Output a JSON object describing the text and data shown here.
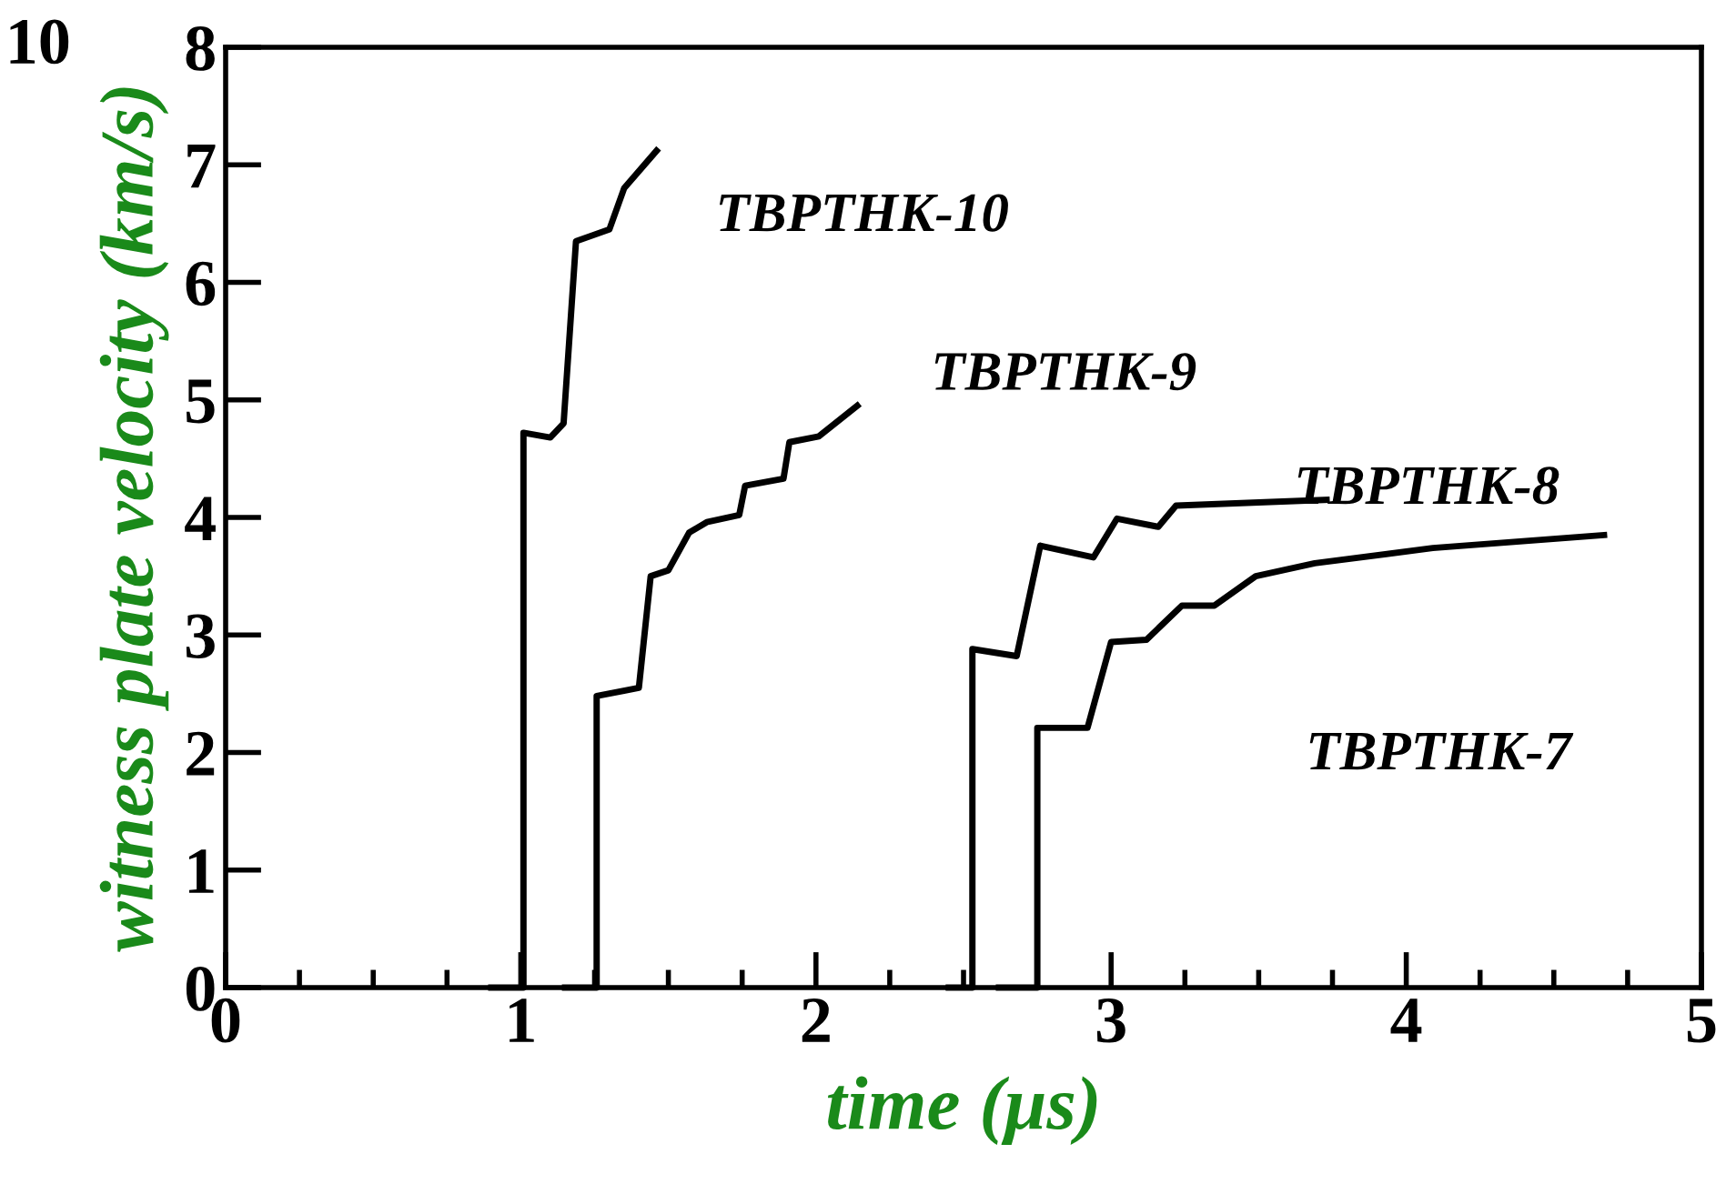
{
  "chart_data": {
    "type": "line",
    "xlabel": "time (μs)",
    "ylabel": "witness plate velocity (km/s)",
    "xlim": [
      0,
      5
    ],
    "ylim": [
      0,
      8
    ],
    "xticks": [
      0,
      1,
      2,
      3,
      4,
      5
    ],
    "yticks": [
      0,
      1,
      2,
      3,
      4,
      5,
      6,
      7,
      8
    ],
    "grid": false,
    "legend": false,
    "marker": "none",
    "line_style": "solid",
    "annotations": [
      "10"
    ],
    "series": [
      {
        "name": "TBPTHK-10",
        "color": "#000000",
        "x": [
          0.9,
          1.009,
          1.009,
          1.1,
          1.145,
          1.187,
          1.3,
          1.35,
          1.46
        ],
        "values": [
          0,
          0,
          4.72,
          4.68,
          4.8,
          6.35,
          6.45,
          6.8,
          7.12
        ]
      },
      {
        "name": "TBPTHK-9",
        "color": "#000000",
        "x": [
          1.15,
          1.257,
          1.257,
          1.4,
          1.44,
          1.5,
          1.57,
          1.63,
          1.74,
          1.76,
          1.89,
          1.91,
          2.01,
          2.14
        ],
        "values": [
          0,
          0,
          2.48,
          2.55,
          3.5,
          3.55,
          3.87,
          3.96,
          4.02,
          4.27,
          4.33,
          4.64,
          4.69,
          4.95
        ]
      },
      {
        "name": "TBPTHK-8",
        "color": "#000000",
        "x": [
          2.45,
          2.53,
          2.53,
          2.68,
          2.76,
          2.94,
          3.02,
          3.16,
          3.22,
          3.73
        ],
        "values": [
          0,
          0,
          2.88,
          2.82,
          3.76,
          3.66,
          3.99,
          3.92,
          4.1,
          4.15
        ]
      },
      {
        "name": "TBPTHK-7",
        "color": "#000000",
        "x": [
          2.62,
          2.75,
          2.75,
          2.92,
          3.0,
          3.12,
          3.24,
          3.35,
          3.49,
          3.69,
          4.09,
          4.67
        ],
        "values": [
          0,
          0,
          2.21,
          2.21,
          2.94,
          2.96,
          3.25,
          3.25,
          3.5,
          3.61,
          3.74,
          3.85
        ]
      }
    ]
  }
}
